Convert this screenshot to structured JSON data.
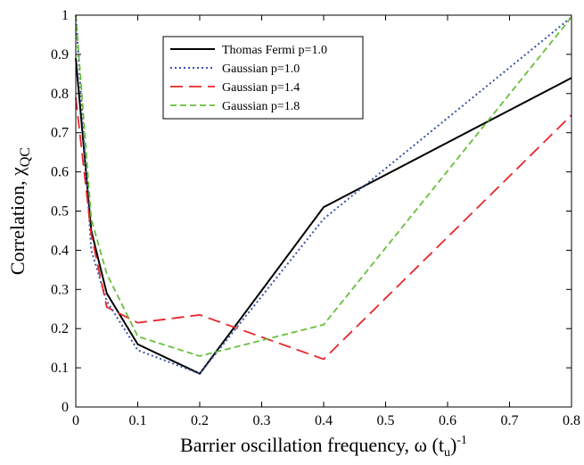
{
  "chart_data": {
    "type": "line",
    "title": "",
    "xlabel": "Barrier oscillation frequency, ω (t",
    "xlabel_sub": "u",
    "xlabel_tail": ")",
    "xlabel_sup": "-1",
    "ylabel": "Correlation, χ",
    "ylabel_sub": "QC",
    "xlim": [
      0,
      0.8
    ],
    "ylim": [
      0,
      1
    ],
    "xticks": [
      0,
      0.1,
      0.2,
      0.3,
      0.4,
      0.5,
      0.6,
      0.7,
      0.8
    ],
    "xtick_labels": [
      "0",
      "0.1",
      "0.2",
      "0.3",
      "0.4",
      "0.5",
      "0.6",
      "0.7",
      "0.8"
    ],
    "yticks": [
      0,
      0.1,
      0.2,
      0.3,
      0.4,
      0.5,
      0.6,
      0.7,
      0.8,
      0.9,
      1
    ],
    "ytick_labels": [
      "0",
      "0.1",
      "0.2",
      "0.3",
      "0.4",
      "0.5",
      "0.6",
      "0.7",
      "0.8",
      "0.9",
      "1"
    ],
    "grid": false,
    "legend_position": "top-center",
    "series": [
      {
        "name": "Thomas Fermi p=1.0",
        "color": "#000000",
        "style": "solid",
        "x": [
          0,
          0.025,
          0.05,
          0.1,
          0.2,
          0.4,
          0.8
        ],
        "y": [
          0.89,
          0.45,
          0.29,
          0.16,
          0.085,
          0.51,
          0.84
        ]
      },
      {
        "name": "Gaussian p=1.0",
        "color": "#3a52a8",
        "style": "dotted",
        "x": [
          0,
          0.025,
          0.05,
          0.1,
          0.2,
          0.4,
          0.8
        ],
        "y": [
          1.0,
          0.4,
          0.27,
          0.145,
          0.085,
          0.48,
          0.995
        ]
      },
      {
        "name": "Gaussian p=1.4",
        "color": "#e8262b",
        "style": "dashed",
        "x": [
          0,
          0.025,
          0.05,
          0.1,
          0.2,
          0.4,
          0.8
        ],
        "y": [
          0.79,
          0.44,
          0.255,
          0.215,
          0.235,
          0.122,
          0.745
        ]
      },
      {
        "name": "Gaussian p=1.8",
        "color": "#6abf3a",
        "style": "dashdot",
        "x": [
          0,
          0.025,
          0.05,
          0.1,
          0.2,
          0.4,
          0.8
        ],
        "y": [
          1.0,
          0.48,
          0.34,
          0.18,
          0.13,
          0.21,
          0.995
        ]
      }
    ]
  }
}
